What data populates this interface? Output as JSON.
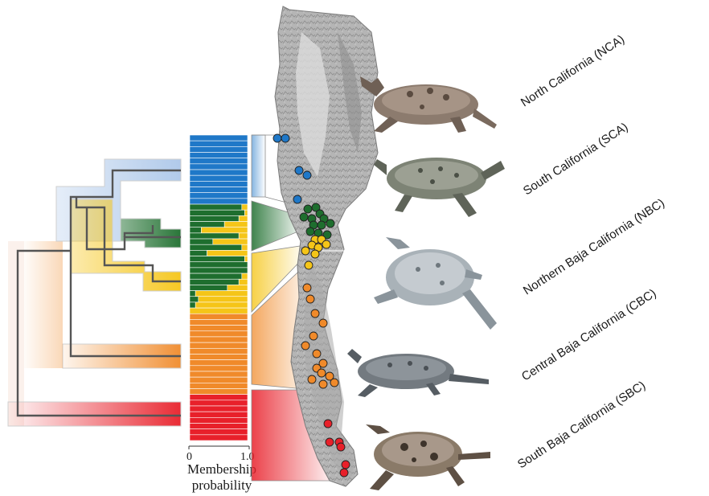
{
  "populations": [
    {
      "code": "NCA",
      "label": "North California (NCA)",
      "color": "#1f78c8",
      "light": "#a8c4e8"
    },
    {
      "code": "SCA",
      "label": "South California (SCA)",
      "color": "#1f78c8",
      "light": "#a8c4e8"
    },
    {
      "code": "NBC",
      "label": "Northern Baja California (NBC)",
      "color": "#1e6e2e",
      "light": "#9fd48f"
    },
    {
      "code": "CBC",
      "label": "Central Baja California (CBC)",
      "color": "#f08a2a",
      "light": "#fbd2ae"
    },
    {
      "code": "SBC",
      "label": "South Baja California (SBC)",
      "color": "#e8202a",
      "light": "#f6b8b8"
    }
  ],
  "membership_plot": {
    "axis_tick_min": "0",
    "axis_tick_max": "1.0",
    "axis_title_line1": "Membership",
    "axis_title_line2": "probability",
    "colors": {
      "blue": "#1f78c8",
      "green": "#1e6e2e",
      "yellow": "#f5c518",
      "orange": "#f08a2a",
      "red": "#e8202a"
    },
    "samples": [
      {
        "cluster": "blue",
        "p": 1.0
      },
      {
        "cluster": "blue",
        "p": 1.0
      },
      {
        "cluster": "blue",
        "p": 1.0
      },
      {
        "cluster": "blue",
        "p": 1.0
      },
      {
        "cluster": "blue",
        "p": 1.0
      },
      {
        "cluster": "blue",
        "p": 1.0
      },
      {
        "cluster": "blue",
        "p": 1.0
      },
      {
        "cluster": "blue",
        "p": 1.0
      },
      {
        "cluster": "blue",
        "p": 1.0
      },
      {
        "cluster": "blue",
        "p": 1.0
      },
      {
        "cluster": "blue",
        "p": 1.0
      },
      {
        "cluster": "blue",
        "p": 1.0
      },
      {
        "cluster": "green",
        "p": 0.9
      },
      {
        "cluster": "green",
        "p": 0.95
      },
      {
        "cluster": "green",
        "p": 0.85
      },
      {
        "cluster": "green",
        "p": 0.6
      },
      {
        "cluster": "green",
        "p": 0.2
      },
      {
        "cluster": "green",
        "p": 0.85
      },
      {
        "cluster": "green",
        "p": 0.4
      },
      {
        "cluster": "green",
        "p": 0.9
      },
      {
        "cluster": "green",
        "p": 0.3
      },
      {
        "cluster": "green",
        "p": 0.95
      },
      {
        "cluster": "green",
        "p": 1.0
      },
      {
        "cluster": "green",
        "p": 1.0
      },
      {
        "cluster": "green",
        "p": 0.9
      },
      {
        "cluster": "green",
        "p": 0.85
      },
      {
        "cluster": "green",
        "p": 0.65
      },
      {
        "cluster": "green",
        "p": 0.1
      },
      {
        "cluster": "green",
        "p": 0.15
      },
      {
        "cluster": "green",
        "p": 0.1
      },
      {
        "cluster": "yellow",
        "p": 1.0
      },
      {
        "cluster": "orange",
        "p": 1.0
      },
      {
        "cluster": "orange",
        "p": 1.0
      },
      {
        "cluster": "orange",
        "p": 1.0
      },
      {
        "cluster": "orange",
        "p": 1.0
      },
      {
        "cluster": "orange",
        "p": 1.0
      },
      {
        "cluster": "orange",
        "p": 1.0
      },
      {
        "cluster": "orange",
        "p": 1.0
      },
      {
        "cluster": "orange",
        "p": 1.0
      },
      {
        "cluster": "orange",
        "p": 1.0
      },
      {
        "cluster": "orange",
        "p": 1.0
      },
      {
        "cluster": "orange",
        "p": 1.0
      },
      {
        "cluster": "orange",
        "p": 1.0
      },
      {
        "cluster": "orange",
        "p": 1.0
      },
      {
        "cluster": "orange",
        "p": 1.0
      },
      {
        "cluster": "red",
        "p": 1.0
      },
      {
        "cluster": "red",
        "p": 1.0
      },
      {
        "cluster": "red",
        "p": 1.0
      },
      {
        "cluster": "red",
        "p": 1.0
      },
      {
        "cluster": "red",
        "p": 1.0
      },
      {
        "cluster": "red",
        "p": 1.0
      },
      {
        "cluster": "red",
        "p": 1.0
      },
      {
        "cluster": "red",
        "p": 1.0
      }
    ]
  },
  "sample_points": [
    {
      "cluster": "blue"
    },
    {
      "cluster": "blue"
    },
    {
      "cluster": "blue"
    },
    {
      "cluster": "blue"
    },
    {
      "cluster": "blue"
    },
    {
      "cluster": "green"
    },
    {
      "cluster": "green"
    },
    {
      "cluster": "green"
    },
    {
      "cluster": "green"
    },
    {
      "cluster": "green"
    },
    {
      "cluster": "green"
    },
    {
      "cluster": "green"
    },
    {
      "cluster": "green"
    },
    {
      "cluster": "green"
    },
    {
      "cluster": "green"
    },
    {
      "cluster": "green"
    },
    {
      "cluster": "green"
    },
    {
      "cluster": "yellow"
    },
    {
      "cluster": "yellow"
    },
    {
      "cluster": "yellow"
    },
    {
      "cluster": "yellow"
    },
    {
      "cluster": "yellow"
    },
    {
      "cluster": "yellow"
    },
    {
      "cluster": "yellow"
    },
    {
      "cluster": "yellow"
    },
    {
      "cluster": "orange"
    },
    {
      "cluster": "orange"
    },
    {
      "cluster": "orange"
    },
    {
      "cluster": "orange"
    },
    {
      "cluster": "orange"
    },
    {
      "cluster": "orange"
    },
    {
      "cluster": "orange"
    },
    {
      "cluster": "orange"
    },
    {
      "cluster": "orange"
    },
    {
      "cluster": "orange"
    },
    {
      "cluster": "orange"
    },
    {
      "cluster": "orange"
    },
    {
      "cluster": "orange"
    },
    {
      "cluster": "orange"
    },
    {
      "cluster": "red"
    },
    {
      "cluster": "red"
    },
    {
      "cluster": "red"
    },
    {
      "cluster": "red"
    },
    {
      "cluster": "red"
    },
    {
      "cluster": "red"
    }
  ],
  "lizard_icons": [
    "horned-lizard-nca",
    "horned-lizard-sca",
    "horned-lizard-nbc",
    "horned-lizard-cbc",
    "horned-lizard-sbc"
  ]
}
